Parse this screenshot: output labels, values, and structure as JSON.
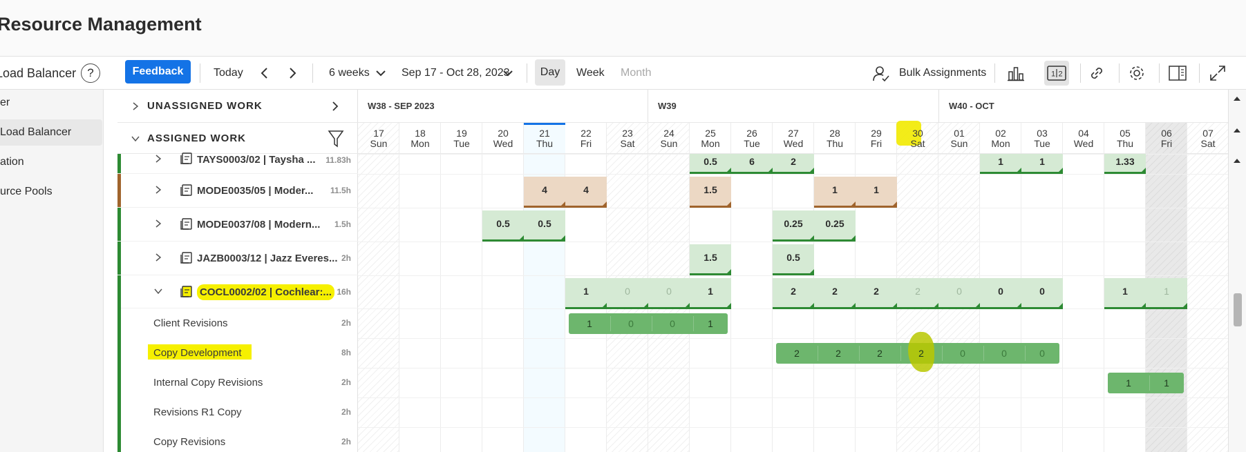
{
  "header": {
    "title": "Resource Management"
  },
  "toolbar": {
    "load_balancer": "Load Balancer",
    "help": "?",
    "feedback": "Feedback",
    "today": "Today",
    "range": "6 weeks",
    "dates": "Sep 17 - Oct 28, 2023",
    "day": "Day",
    "week": "Week",
    "month": "Month",
    "bulk": "Bulk Assignments"
  },
  "sidebar": {
    "items": [
      "er",
      "Load Balancer",
      "ation",
      "urce Pools"
    ]
  },
  "sections": {
    "unassigned": "UNASSIGNED WORK",
    "assigned": "ASSIGNED WORK"
  },
  "weeks": [
    "W38 - SEP 2023",
    "W39",
    "W40 - OCT"
  ],
  "days": [
    {
      "n": "17",
      "d": "Sun"
    },
    {
      "n": "18",
      "d": "Mon"
    },
    {
      "n": "19",
      "d": "Tue"
    },
    {
      "n": "20",
      "d": "Wed"
    },
    {
      "n": "21",
      "d": "Thu"
    },
    {
      "n": "22",
      "d": "Fri"
    },
    {
      "n": "23",
      "d": "Sat"
    },
    {
      "n": "24",
      "d": "Sun"
    },
    {
      "n": "25",
      "d": "Mon"
    },
    {
      "n": "26",
      "d": "Tue"
    },
    {
      "n": "27",
      "d": "Wed"
    },
    {
      "n": "28",
      "d": "Thu"
    },
    {
      "n": "29",
      "d": "Fri"
    },
    {
      "n": "30",
      "d": "Sat"
    },
    {
      "n": "01",
      "d": "Sun"
    },
    {
      "n": "02",
      "d": "Mon"
    },
    {
      "n": "03",
      "d": "Tue"
    },
    {
      "n": "04",
      "d": "Wed"
    },
    {
      "n": "05",
      "d": "Thu"
    },
    {
      "n": "06",
      "d": "Fri"
    },
    {
      "n": "07",
      "d": "Sat"
    }
  ],
  "projects": [
    {
      "name": "TAYS0003/02 | Taysha ...",
      "hours": "11.83h",
      "color": "#2d8a33"
    },
    {
      "name": "MODE0035/05 | Moder...",
      "hours": "11.5h",
      "color": "#a0642d"
    },
    {
      "name": "MODE0037/08 | Modern...",
      "hours": "1.5h",
      "color": "#2d8a33"
    },
    {
      "name": "JAZB0003/12 | Jazz Everes...",
      "hours": "2h",
      "color": "#2d8a33"
    },
    {
      "name": "COCL0002/02 | Cochlear:...",
      "hours": "16h",
      "color": "#2d8a33"
    }
  ],
  "tasks": [
    {
      "name": "Client Revisions",
      "hours": "2h"
    },
    {
      "name": "Copy Development",
      "hours": "8h"
    },
    {
      "name": "Internal Copy Revisions",
      "hours": "2h"
    },
    {
      "name": "Revisions R1 Copy",
      "hours": "2h"
    },
    {
      "name": "Copy Revisions",
      "hours": "2h"
    }
  ],
  "allocations": {
    "tays": [
      {
        "day": 8,
        "v": "0.5"
      },
      {
        "day": 9,
        "v": "6"
      },
      {
        "day": 10,
        "v": "2"
      },
      {
        "day": 15,
        "v": "1"
      },
      {
        "day": 16,
        "v": "1"
      },
      {
        "day": 18,
        "v": "1.33"
      }
    ],
    "mode35": [
      {
        "day": 4,
        "v": "4"
      },
      {
        "day": 5,
        "v": "4"
      },
      {
        "day": 8,
        "v": "1.5"
      },
      {
        "day": 11,
        "v": "1"
      },
      {
        "day": 12,
        "v": "1"
      }
    ],
    "mode37": [
      {
        "day": 3,
        "v": "0.5"
      },
      {
        "day": 4,
        "v": "0.5"
      },
      {
        "day": 10,
        "v": "0.25"
      },
      {
        "day": 11,
        "v": "0.25"
      }
    ],
    "jazb": [
      {
        "day": 8,
        "v": "1.5"
      },
      {
        "day": 10,
        "v": "0.5"
      }
    ],
    "cocl": [
      {
        "day": 5,
        "v": "1"
      },
      {
        "day": 6,
        "v": "0",
        "light": true
      },
      {
        "day": 7,
        "v": "0",
        "light": true
      },
      {
        "day": 8,
        "v": "1"
      },
      {
        "day": 10,
        "v": "2"
      },
      {
        "day": 11,
        "v": "2"
      },
      {
        "day": 12,
        "v": "2"
      },
      {
        "day": 13,
        "v": "2",
        "light": true
      },
      {
        "day": 14,
        "v": "0",
        "light": true
      },
      {
        "day": 15,
        "v": "0"
      },
      {
        "day": 16,
        "v": "0"
      },
      {
        "day": 18,
        "v": "1"
      },
      {
        "day": 19,
        "v": "1",
        "light": true
      }
    ],
    "client_revisions": [
      "1",
      "0",
      "0",
      "1"
    ],
    "copy_development": [
      "2",
      "2",
      "2",
      "2",
      "0",
      "0",
      "0"
    ],
    "internal_copy_revisions": [
      "1",
      "1"
    ]
  },
  "colors": {
    "accent": "#1473e6",
    "allocation_green": "#d5ead4",
    "allocation_brown": "#ecd8c4",
    "task_bar": "#6db66d",
    "highlight": "#f6f000"
  }
}
